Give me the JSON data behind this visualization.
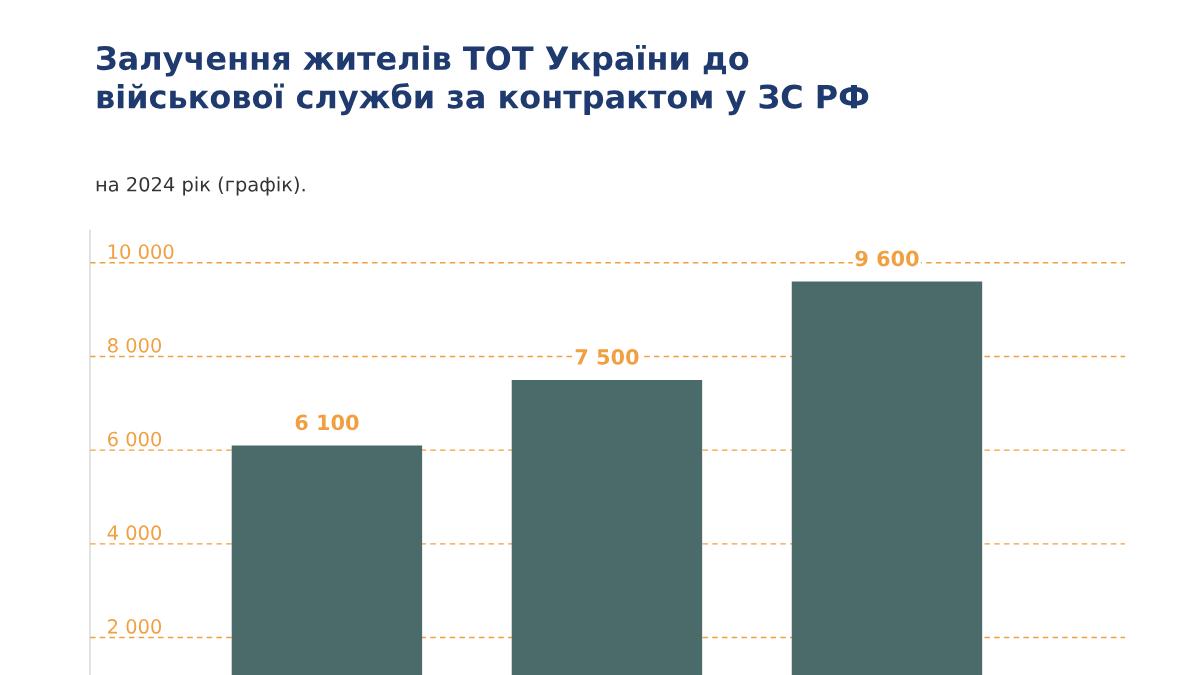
{
  "chart_data": {
    "type": "bar",
    "title": "Залучення жителів ТОТ України до\nвійськової служби за контрактом у ЗС РФ",
    "subtitle": "на 2024 рік (графік).",
    "categories": [
      null,
      null,
      null
    ],
    "values": [
      6100,
      7500,
      9600
    ],
    "color": "#4a6b69",
    "ylim": [
      1200,
      10700
    ],
    "yticks": [
      {
        "value": 2000,
        "label": "2 000"
      },
      {
        "value": 4000,
        "label": "4 000"
      },
      {
        "value": 6000,
        "label": "6 000"
      },
      {
        "value": 8000,
        "label": "8 000"
      },
      {
        "value": 10000,
        "label": "10 000"
      }
    ],
    "grid": "y",
    "data_labels": true,
    "value_labels": [
      "6 100",
      "7 500",
      "9 600"
    ]
  }
}
